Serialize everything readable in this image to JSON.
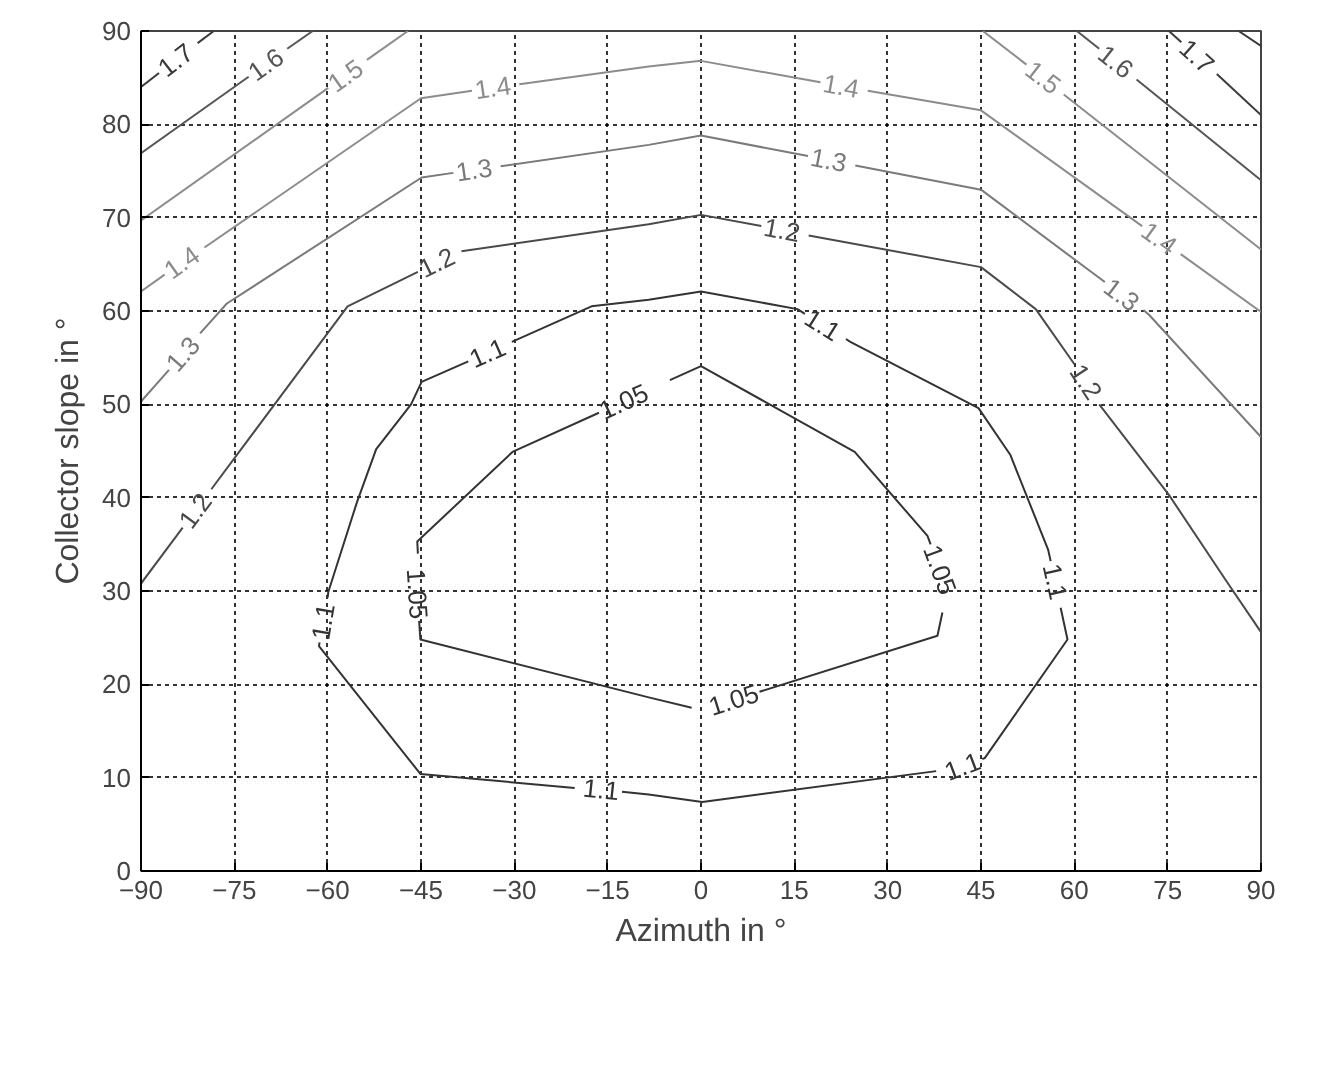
{
  "chart_data": {
    "type": "line",
    "xlabel": "Azimuth in °",
    "ylabel": "Collector slope in °",
    "xlim": [
      -90,
      90
    ],
    "ylim": [
      0,
      90
    ],
    "xticks": [
      -90,
      -75,
      -60,
      -45,
      -30,
      -15,
      0,
      15,
      30,
      45,
      60,
      75,
      90
    ],
    "yticks": [
      0,
      10,
      20,
      30,
      40,
      50,
      60,
      70,
      80,
      90
    ],
    "grid": true,
    "series": [
      {
        "name": "1.05",
        "color": "#333333",
        "x": [
          -5,
          0,
          24.7,
          36.4,
          36.9
        ],
        "values": [
          52.6,
          54.1,
          44.9,
          35.9,
          35.0
        ]
      },
      {
        "name": "1.05",
        "color": "#333333",
        "x": [
          38.8,
          38,
          9.4
        ],
        "values": [
          27.7,
          25.2,
          19.2
        ]
      },
      {
        "name": "1.05",
        "color": "#333333",
        "x": [
          -1.5,
          -8.4,
          -45.1,
          -45.3
        ],
        "values": [
          17.5,
          18.6,
          24.8,
          26.8
        ]
      },
      {
        "name": "1.05",
        "color": "#333333",
        "x": [
          -45.5,
          -45.6,
          -30.3,
          -16.4
        ],
        "values": [
          34.0,
          35.3,
          44.9,
          49.1
        ]
      },
      {
        "name": "1.1",
        "color": "#333333",
        "x": [
          -30.4,
          -17.6,
          -8.4,
          0,
          15.5,
          16.7
        ],
        "values": [
          56.7,
          60.5,
          61.2,
          62.1,
          60.2,
          59.7
        ]
      },
      {
        "name": "1.1",
        "color": "#333333",
        "x": [
          23.3,
          24,
          44.6,
          49.7,
          55.8,
          56.2
        ],
        "values": [
          57.0,
          56.7,
          49.6,
          44.6,
          34.4,
          33.2
        ]
      },
      {
        "name": "1.1",
        "color": "#333333",
        "x": [
          57.8,
          58.9,
          45.6,
          45.2
        ],
        "values": [
          28.2,
          24.8,
          12.1,
          12.0
        ]
      },
      {
        "name": "1.1",
        "color": "#333333",
        "x": [
          37.8,
          0.2,
          -8.4,
          -12.7
        ],
        "values": [
          10.7,
          7.4,
          8.2,
          8.5
        ]
      },
      {
        "name": "1.1",
        "color": "#333333",
        "x": [
          -20.3,
          -45.1,
          -61.4,
          -61.3
        ],
        "values": [
          8.9,
          10.4,
          24.1,
          24.5
        ]
      },
      {
        "name": "1.1",
        "color": "#333333",
        "x": [
          -60,
          -59.9,
          -55.3,
          -52.2,
          -46.6,
          -44.9,
          -37.4
        ],
        "values": [
          29.3,
          29.9,
          39.5,
          45.2,
          50,
          52.4,
          54.6
        ]
      },
      {
        "name": "1.2",
        "color": "#4a4a4a",
        "x": [
          -90,
          -83.3
        ],
        "values": [
          30.8,
          36.8
        ]
      },
      {
        "name": "1.2",
        "color": "#4a4a4a",
        "x": [
          -78.7,
          -56.8,
          -45.5
        ],
        "values": [
          40.9,
          60.5,
          64.2
        ]
      },
      {
        "name": "1.2",
        "color": "#4a4a4a",
        "x": [
          -38.5,
          -8.4,
          0,
          9.7
        ],
        "values": [
          66.4,
          69.3,
          70.3,
          69.1
        ]
      },
      {
        "name": "1.2",
        "color": "#4a4a4a",
        "x": [
          17.3,
          45,
          53.8,
          59.9,
          60.0
        ],
        "values": [
          68.1,
          64.7,
          60.2,
          54.4,
          54.3
        ]
      },
      {
        "color": "#4a4a4a",
        "x": [
          64,
          75.2,
          84.4,
          90
        ],
        "values": [
          50,
          40.3,
          31.1,
          25.6
        ]
      },
      {
        "name": "1.3",
        "color": "#7a7a7a",
        "x": [
          -90,
          -85.5
        ],
        "values": [
          50.3,
          53.7
        ]
      },
      {
        "name": "1.3",
        "color": "#7a7a7a",
        "x": [
          -80.5,
          -76.2,
          -44.9,
          -39.8
        ],
        "values": [
          57.6,
          60.8,
          74.3,
          74.8
        ]
      },
      {
        "name": "1.3",
        "color": "#7a7a7a",
        "x": [
          -32.2,
          -8.4,
          0,
          17.2
        ],
        "values": [
          75.5,
          77.8,
          78.8,
          76.6
        ]
      },
      {
        "name": "1.3",
        "color": "#7a7a7a",
        "x": [
          24.8,
          45,
          64.9
        ],
        "values": [
          75.6,
          73,
          63.1
        ]
      },
      {
        "color": "#7a7a7a",
        "x": [
          71.1,
          72,
          90
        ],
        "values": [
          60.1,
          59.6,
          46.5
        ]
      },
      {
        "name": "1.4",
        "color": "#8c8c8c",
        "x": [
          -90,
          -86.2
        ],
        "values": [
          62.1,
          63.9
        ]
      },
      {
        "name": "1.4",
        "color": "#8c8c8c",
        "x": [
          -79.8,
          -45,
          -36.8
        ],
        "values": [
          66.8,
          82.8,
          83.6
        ]
      },
      {
        "name": "1.4",
        "color": "#8c8c8c",
        "x": [
          -29.2,
          -8.4,
          0,
          19.2
        ],
        "values": [
          84.3,
          86.2,
          86.8,
          84.5
        ]
      },
      {
        "name": "1.4",
        "color": "#8c8c8c",
        "x": [
          26.8,
          45,
          70.9
        ],
        "values": [
          83.6,
          81.5,
          69.1
        ]
      },
      {
        "color": "#8c8c8c",
        "x": [
          77.1,
          90
        ],
        "values": [
          66.1,
          59.9
        ]
      },
      {
        "name": "1.5",
        "color": "#8c8c8c",
        "x": [
          -90,
          -59.9
        ],
        "values": [
          69.7,
          83.9
        ]
      },
      {
        "color": "#8c8c8c",
        "x": [
          -53.7,
          -47.1
        ],
        "values": [
          86.9,
          90
        ]
      },
      {
        "name": "1.5",
        "color": "#8c8c8c",
        "x": [
          45.3,
          52.3
        ],
        "values": [
          90,
          86.4
        ]
      },
      {
        "color": "#8c8c8c",
        "x": [
          58.3,
          90
        ],
        "values": [
          83.2,
          66.6
        ]
      },
      {
        "name": "1.6",
        "color": "#555555",
        "x": [
          -90,
          -72.7
        ],
        "values": [
          76.9,
          85.1
        ]
      },
      {
        "color": "#555555",
        "x": [
          -66.5,
          -62.4
        ],
        "values": [
          88.1,
          90
        ]
      },
      {
        "name": "1.6",
        "color": "#555555",
        "x": [
          60.4,
          64
        ],
        "values": [
          90,
          88.1
        ]
      },
      {
        "color": "#555555",
        "x": [
          70,
          90
        ],
        "values": [
          84.8,
          74
        ]
      },
      {
        "name": "1.7",
        "color": "#3a3a3a",
        "x": [
          -90,
          -87.1
        ],
        "values": [
          84,
          85.5
        ]
      },
      {
        "color": "#3a3a3a",
        "x": [
          -80.9,
          -78.3
        ],
        "values": [
          88.7,
          90
        ]
      },
      {
        "name": "1.7",
        "color": "#3a3a3a",
        "x": [
          75.2,
          77.2
        ],
        "values": [
          90,
          88.8
        ]
      },
      {
        "color": "#3a3a3a",
        "x": [
          82.9,
          90
        ],
        "values": [
          85.4,
          81
        ]
      },
      {
        "color": "#3a3a3a",
        "x": [
          86.4,
          90
        ],
        "values": [
          90,
          88.4
        ]
      }
    ]
  }
}
